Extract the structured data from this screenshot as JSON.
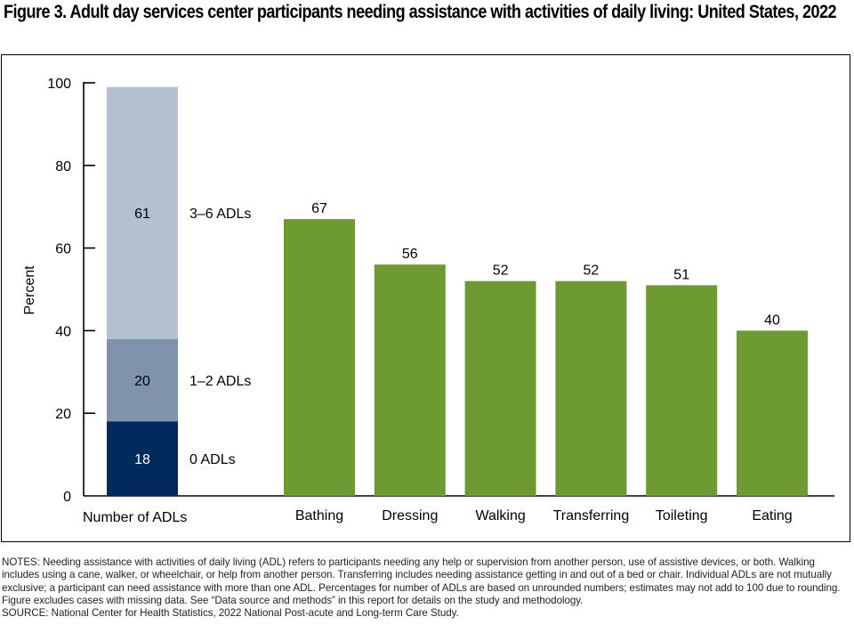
{
  "figure": {
    "title": "Figure 3. Adult day services center participants needing assistance with activities of daily living: United States, 2022",
    "notes": "NOTES: Needing assistance with activities of daily living (ADL) refers to participants needing any help or supervision from another person, use of assistive devices, or both. Walking includes using a cane, walker, or wheelchair, or help from another person. Transferring includes needing assistance getting in and out of a bed or chair. Individual ADLs are not mutually exclusive; a participant can need assistance with more than one ADL. Percentages for number of ADLs are based on unrounded numbers; estimates may not add to 100 due to rounding. Figure excludes cases with missing data. See “Data source and methods” in this report for details on the study and methodology.",
    "source": "SOURCE: National Center for Health Statistics, 2022 National Post-acute and Long-term Care Study."
  },
  "chart_data": {
    "type": "bar",
    "title": "Figure 3. Adult day services center participants needing assistance with activities of daily living: United States, 2022",
    "xlabel": "",
    "ylabel": "Percent",
    "ylim": [
      0,
      100
    ],
    "yticks": [
      0,
      20,
      40,
      60,
      80,
      100
    ],
    "grid": false,
    "stacked_bar": {
      "category": "Number of ADLs",
      "segments": [
        {
          "name": "0 ADLs",
          "value": 18,
          "color": "#002b5c",
          "label_color": "#ffffff"
        },
        {
          "name": "1–2 ADLs",
          "value": 20,
          "color": "#7f93ac",
          "label_color": "#000000"
        },
        {
          "name": "3–6 ADLs",
          "value": 61,
          "color": "#b3c0d0",
          "label_color": "#000000"
        }
      ]
    },
    "categories": [
      "Bathing",
      "Dressing",
      "Walking",
      "Transferring",
      "Toileting",
      "Eating"
    ],
    "values": [
      67,
      56,
      52,
      52,
      51,
      40
    ],
    "bar_color": "#6d9b32"
  }
}
